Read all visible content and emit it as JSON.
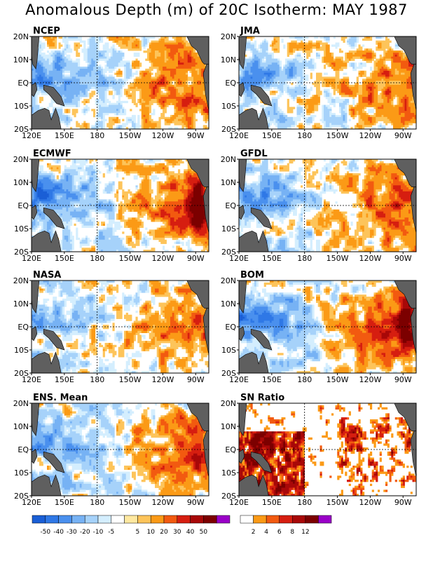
{
  "title": "Anomalous Depth (m) of 20C Isotherm: MAY 1987",
  "colors": {
    "anomaly_levels": [
      "#1a5fd6",
      "#2f78e6",
      "#4a90ee",
      "#77b2f4",
      "#a6d2fa",
      "#d4eefe",
      "#ffffff",
      "#ffe8a0",
      "#fdc45a",
      "#fb9a16",
      "#f25a10",
      "#d61e10",
      "#a80808",
      "#7c0000",
      "#9a00c8"
    ],
    "ratio_levels": [
      "#ffffff",
      "#fb9a16",
      "#f25a10",
      "#d61e10",
      "#a80808",
      "#7c0000",
      "#9a00c8"
    ],
    "land": "#5f5f5f"
  },
  "chart_data": [
    {
      "type": "heatmap",
      "title": "NCEP",
      "pattern": "warm-east",
      "xticks": [
        "120E",
        "150E",
        "180",
        "150W",
        "120W",
        "90W"
      ],
      "yticks": [
        "20N",
        "10N",
        "EQ",
        "10S",
        "20S"
      ]
    },
    {
      "type": "heatmap",
      "title": "JMA",
      "pattern": "warm-east-weak",
      "xticks": [
        "120E",
        "150E",
        "180",
        "150W",
        "120W",
        "90W"
      ],
      "yticks": [
        "20N",
        "10N",
        "EQ",
        "10S",
        "20S"
      ]
    },
    {
      "type": "heatmap",
      "title": "ECMWF",
      "pattern": "warm-east-strong",
      "xticks": [
        "120E",
        "150E",
        "180",
        "150W",
        "120W",
        "90W"
      ],
      "yticks": [
        "20N",
        "10N",
        "EQ",
        "10S",
        "20S"
      ]
    },
    {
      "type": "heatmap",
      "title": "GFDL",
      "pattern": "warm-east",
      "xticks": [
        "120E",
        "150E",
        "180",
        "150W",
        "120W",
        "90W"
      ],
      "yticks": [
        "20N",
        "10N",
        "EQ",
        "10S",
        "20S"
      ]
    },
    {
      "type": "heatmap",
      "title": "NASA",
      "pattern": "warm-east-weak",
      "xticks": [
        "120E",
        "150E",
        "180",
        "150W",
        "120W",
        "90W"
      ],
      "yticks": [
        "20N",
        "10N",
        "EQ",
        "10S",
        "20S"
      ]
    },
    {
      "type": "heatmap",
      "title": "BOM",
      "pattern": "warm-east-strong",
      "xticks": [
        "120E",
        "150E",
        "180",
        "150W",
        "120W",
        "90W"
      ],
      "yticks": [
        "20N",
        "10N",
        "EQ",
        "10S",
        "20S"
      ]
    },
    {
      "type": "heatmap",
      "title": "ENS. Mean",
      "pattern": "warm-east",
      "xticks": [
        "120E",
        "150E",
        "180",
        "150W",
        "120W",
        "90W"
      ],
      "yticks": [
        "20N",
        "10N",
        "EQ",
        "10S",
        "20S"
      ]
    },
    {
      "type": "heatmap",
      "title": "SN Ratio",
      "pattern": "ratio",
      "xticks": [
        "120E",
        "150E",
        "180",
        "150W",
        "120W",
        "90W"
      ],
      "yticks": [
        "20N",
        "10N",
        "EQ",
        "10S",
        "20S"
      ]
    }
  ],
  "colorbars": {
    "anomaly": {
      "labels": [
        "-50",
        "-40",
        "-30",
        "-20",
        "-10",
        "-5",
        "5",
        "10",
        "20",
        "30",
        "40",
        "50"
      ]
    },
    "ratio": {
      "labels": [
        "2",
        "4",
        "6",
        "8",
        "12"
      ]
    }
  }
}
